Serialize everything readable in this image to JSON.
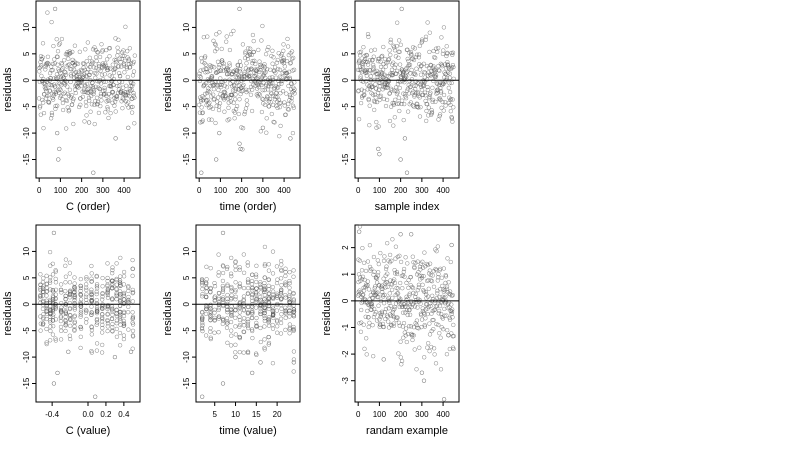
{
  "chart_data": [
    {
      "type": "scatter",
      "xlabel": "C (order)",
      "ylabel": "residuals",
      "xlim": [
        -15,
        475
      ],
      "ylim": [
        -18.5,
        15
      ],
      "xticks": [
        0,
        100,
        200,
        300,
        400
      ],
      "xtick_labels": [
        "0",
        "100",
        "200",
        "300",
        "400"
      ],
      "yticks": [
        -15,
        -10,
        -5,
        0,
        5,
        10
      ],
      "ytick_labels": [
        "-15",
        "-10",
        "-5",
        "0",
        "5",
        "10"
      ],
      "hline": 0,
      "x_pattern": "index",
      "n": 460,
      "points_seed": 11,
      "spread": 3.6,
      "outliers": [
        [
          75,
          13.5
        ],
        [
          255,
          -17.5
        ],
        [
          360,
          -11
        ],
        [
          95,
          -13
        ],
        [
          90,
          -15
        ],
        [
          420,
          -9
        ],
        [
          235,
          -8
        ],
        [
          85,
          -10
        ]
      ]
    },
    {
      "type": "scatter",
      "xlabel": "time (order)",
      "ylabel": "residuals",
      "xlim": [
        -15,
        475
      ],
      "ylim": [
        -18.5,
        15
      ],
      "xticks": [
        0,
        100,
        200,
        300,
        400
      ],
      "xtick_labels": [
        "0",
        "100",
        "200",
        "300",
        "400"
      ],
      "yticks": [
        -15,
        -10,
        -5,
        0,
        5,
        10
      ],
      "ytick_labels": [
        "-15",
        "-10",
        "-5",
        "0",
        "5",
        "10"
      ],
      "hline": 0,
      "x_pattern": "index",
      "n": 460,
      "points_seed": 23,
      "spread": 3.6,
      "outliers": [
        [
          190,
          13.5
        ],
        [
          10,
          -17.5
        ],
        [
          80,
          -15
        ],
        [
          195,
          -13
        ],
        [
          190,
          -12
        ],
        [
          430,
          -11
        ],
        [
          300,
          -9
        ],
        [
          95,
          -10
        ]
      ]
    },
    {
      "type": "scatter",
      "xlabel": "sample index",
      "ylabel": "residuals",
      "xlim": [
        -15,
        475
      ],
      "ylim": [
        -18.5,
        15
      ],
      "xticks": [
        0,
        100,
        200,
        300,
        400
      ],
      "xtick_labels": [
        "0",
        "100",
        "200",
        "300",
        "400"
      ],
      "yticks": [
        -15,
        -10,
        -5,
        0,
        5,
        10
      ],
      "ytick_labels": [
        "-15",
        "-10",
        "-5",
        "0",
        "5",
        "10"
      ],
      "hline": 0,
      "x_pattern": "index",
      "n": 460,
      "points_seed": 37,
      "spread": 3.6,
      "outliers": [
        [
          205,
          13.5
        ],
        [
          95,
          -13
        ],
        [
          200,
          -15
        ],
        [
          230,
          -17.5
        ],
        [
          100,
          -14
        ],
        [
          220,
          -11
        ],
        [
          440,
          -7
        ]
      ]
    },
    {
      "type": "scatter",
      "xlabel": "C (value)",
      "ylabel": "residuals",
      "xlim": [
        -0.58,
        0.58
      ],
      "ylim": [
        -18.5,
        15
      ],
      "xticks": [
        -0.4,
        0.0,
        0.2,
        0.4
      ],
      "xtick_labels": [
        "-0.4",
        "0.0",
        "0.2",
        "0.4"
      ],
      "yticks": [
        -15,
        -10,
        -5,
        0,
        5,
        10
      ],
      "ytick_labels": [
        "-15",
        "-10",
        "-5",
        "0",
        "5",
        "10"
      ],
      "hline": 0,
      "x_pattern": "columns",
      "x_columns": [
        -0.53,
        -0.5,
        -0.46,
        -0.42,
        -0.39,
        -0.36,
        -0.3,
        -0.25,
        -0.2,
        -0.15,
        -0.08,
        -0.02,
        0.04,
        0.1,
        0.16,
        0.22,
        0.27,
        0.32,
        0.36,
        0.4,
        0.45,
        0.5
      ],
      "n": 460,
      "points_seed": 53,
      "spread": 3.6,
      "outliers": [
        [
          -0.38,
          13.5
        ],
        [
          0.08,
          -17.5
        ],
        [
          -0.38,
          -15
        ],
        [
          -0.34,
          -13
        ],
        [
          0.3,
          -10
        ],
        [
          -0.22,
          -9
        ],
        [
          0.48,
          -9
        ]
      ]
    },
    {
      "type": "scatter",
      "xlabel": "time (value)",
      "ylabel": "residuals",
      "xlim": [
        0.5,
        25.5
      ],
      "ylim": [
        -18.5,
        15
      ],
      "xticks": [
        5,
        10,
        15,
        20
      ],
      "xtick_labels": [
        "5",
        "10",
        "15",
        "20"
      ],
      "yticks": [
        -15,
        -10,
        -5,
        0,
        5,
        10
      ],
      "ytick_labels": [
        "-15",
        "-10",
        "-5",
        "0",
        "5",
        "10"
      ],
      "hline": 0,
      "x_pattern": "columns",
      "x_columns": [
        2,
        3,
        4,
        5,
        6,
        7,
        8,
        9,
        10,
        11,
        12,
        13,
        14,
        15,
        16,
        17,
        18,
        19,
        20,
        21,
        22,
        23,
        24
      ],
      "n": 460,
      "points_seed": 71,
      "spread": 3.6,
      "outliers": [
        [
          7,
          13.5
        ],
        [
          2,
          -17.5
        ],
        [
          7,
          -15
        ],
        [
          14,
          -13
        ],
        [
          16,
          -11
        ],
        [
          24,
          -11
        ],
        [
          10,
          -10
        ],
        [
          13,
          -9
        ]
      ]
    },
    {
      "type": "scatter",
      "xlabel": "randam example",
      "ylabel": "residuals",
      "xlim": [
        -15,
        475
      ],
      "ylim": [
        -3.8,
        2.85
      ],
      "xticks": [
        0,
        100,
        200,
        300,
        400
      ],
      "xtick_labels": [
        "0",
        "100",
        "200",
        "300",
        "400"
      ],
      "yticks": [
        -3,
        -2,
        -1,
        0,
        1,
        2
      ],
      "ytick_labels": [
        "-3",
        "-2",
        "-1",
        "0",
        "1",
        "2"
      ],
      "hline": 0,
      "x_pattern": "index",
      "n": 460,
      "points_seed": 97,
      "spread": 1.0,
      "outliers": [
        [
          405,
          -3.7
        ],
        [
          310,
          -3.0
        ],
        [
          5,
          2.6
        ],
        [
          200,
          2.5
        ],
        [
          250,
          2.5
        ],
        [
          440,
          2.1
        ],
        [
          300,
          -2.7
        ],
        [
          120,
          -2.2
        ]
      ]
    }
  ]
}
